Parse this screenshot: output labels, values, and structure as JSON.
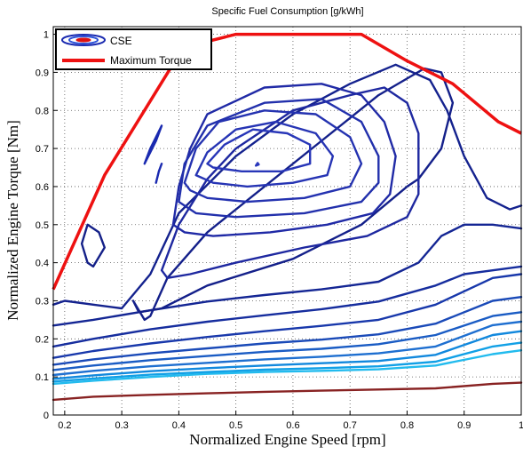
{
  "chart_data": {
    "type": "line",
    "title": "Specific Fuel Consumption [g/kWh]",
    "xlabel": "Normalized Engine Speed [rpm]",
    "ylabel": "Normalized Engine Torque [Nm]",
    "xlim": [
      0.18,
      1.0
    ],
    "ylim": [
      0,
      1.02
    ],
    "xticks": [
      "0.2",
      "0.3",
      "0.4",
      "0.5",
      "0.6",
      "0.7",
      "0.8",
      "0.9",
      "1"
    ],
    "xtick_values": [
      0.2,
      0.3,
      0.4,
      0.5,
      0.6,
      0.7,
      0.8,
      0.9,
      1.0
    ],
    "yticks": [
      "0",
      "0.1",
      "0.2",
      "0.3",
      "0.4",
      "0.5",
      "0.6",
      "0.7",
      "0.8",
      "0.9",
      "1"
    ],
    "ytick_values": [
      0,
      0.1,
      0.2,
      0.3,
      0.4,
      0.5,
      0.6,
      0.7,
      0.8,
      0.9,
      1.0
    ],
    "grid": true,
    "legend_position": "top-left",
    "legend": [
      {
        "label": "CSE",
        "style": "contour"
      },
      {
        "label": "Maximum Torque",
        "style": "line",
        "color": "#ee1111"
      }
    ],
    "max_torque": {
      "name": "Maximum Torque",
      "color": "#ee1111",
      "x": [
        0.18,
        0.27,
        0.385,
        0.42,
        0.5,
        0.72,
        0.8,
        0.88,
        0.96,
        1.0
      ],
      "y": [
        0.33,
        0.63,
        0.91,
        0.97,
        1.0,
        1.0,
        0.93,
        0.87,
        0.77,
        0.74
      ]
    },
    "contours": [
      {
        "color": "#882222",
        "x": [
          0.18,
          0.25,
          0.35,
          0.45,
          0.55,
          0.65,
          0.75,
          0.85,
          0.95,
          1.0
        ],
        "y": [
          0.04,
          0.048,
          0.053,
          0.057,
          0.061,
          0.064,
          0.067,
          0.07,
          0.082,
          0.085
        ]
      },
      {
        "color": "#22bbee",
        "x": [
          0.18,
          0.25,
          0.35,
          0.45,
          0.55,
          0.65,
          0.75,
          0.85,
          0.95,
          1.0
        ],
        "y": [
          0.082,
          0.09,
          0.1,
          0.108,
          0.113,
          0.116,
          0.12,
          0.13,
          0.16,
          0.17
        ]
      },
      {
        "color": "#11a0e6",
        "x": [
          0.18,
          0.25,
          0.35,
          0.45,
          0.55,
          0.65,
          0.75,
          0.85,
          0.95,
          1.0
        ],
        "y": [
          0.088,
          0.096,
          0.106,
          0.113,
          0.119,
          0.123,
          0.128,
          0.14,
          0.18,
          0.19
        ]
      },
      {
        "color": "#1188dd",
        "x": [
          0.18,
          0.25,
          0.35,
          0.45,
          0.55,
          0.65,
          0.75,
          0.85,
          0.95,
          1.0
        ],
        "y": [
          0.095,
          0.104,
          0.115,
          0.123,
          0.13,
          0.136,
          0.142,
          0.158,
          0.21,
          0.22
        ]
      },
      {
        "color": "#1e6fd0",
        "x": [
          0.18,
          0.25,
          0.35,
          0.45,
          0.55,
          0.65,
          0.75,
          0.85,
          0.95,
          1.0
        ],
        "y": [
          0.105,
          0.116,
          0.128,
          0.137,
          0.146,
          0.153,
          0.162,
          0.18,
          0.236,
          0.245
        ]
      },
      {
        "color": "#1a5cc4",
        "x": [
          0.18,
          0.25,
          0.35,
          0.45,
          0.55,
          0.65,
          0.75,
          0.85,
          0.95,
          1.0
        ],
        "y": [
          0.118,
          0.13,
          0.144,
          0.155,
          0.166,
          0.174,
          0.186,
          0.21,
          0.26,
          0.27
        ]
      },
      {
        "color": "#1a4ab8",
        "x": [
          0.18,
          0.25,
          0.35,
          0.45,
          0.55,
          0.65,
          0.75,
          0.85,
          0.95,
          1.0
        ],
        "y": [
          0.132,
          0.146,
          0.162,
          0.175,
          0.188,
          0.198,
          0.212,
          0.24,
          0.3,
          0.31
        ]
      },
      {
        "color": "#1838ab",
        "x": [
          0.18,
          0.25,
          0.35,
          0.45,
          0.55,
          0.65,
          0.75,
          0.85,
          0.95,
          1.0
        ],
        "y": [
          0.15,
          0.168,
          0.188,
          0.205,
          0.22,
          0.234,
          0.25,
          0.29,
          0.36,
          0.37
        ]
      },
      {
        "color": "#162d9e",
        "x": [
          0.18,
          0.25,
          0.35,
          0.45,
          0.55,
          0.65,
          0.75,
          0.85,
          0.9,
          0.95,
          1.0
        ],
        "y": [
          0.18,
          0.2,
          0.225,
          0.245,
          0.262,
          0.278,
          0.298,
          0.34,
          0.37,
          0.38,
          0.39
        ]
      },
      {
        "color": "#142694",
        "x": [
          0.18,
          0.25,
          0.35,
          0.45,
          0.55,
          0.65,
          0.75,
          0.82,
          0.86,
          0.9,
          0.95,
          1.0
        ],
        "y": [
          0.235,
          0.25,
          0.275,
          0.298,
          0.315,
          0.33,
          0.35,
          0.4,
          0.47,
          0.5,
          0.5,
          0.49
        ]
      },
      {
        "color": "#14228e",
        "x": [
          0.18,
          0.2,
          0.25,
          0.3,
          0.35,
          0.4,
          0.5,
          0.6,
          0.7,
          0.78,
          0.84,
          0.87,
          0.9,
          0.94,
          0.98,
          1.0
        ],
        "y": [
          0.29,
          0.3,
          0.29,
          0.28,
          0.37,
          0.53,
          0.68,
          0.79,
          0.87,
          0.92,
          0.88,
          0.8,
          0.68,
          0.57,
          0.54,
          0.55
        ]
      },
      {
        "color": "#142088",
        "x": [
          0.24,
          0.23,
          0.24,
          0.26,
          0.27,
          0.25,
          0.24
        ],
        "y": [
          0.4,
          0.45,
          0.5,
          0.48,
          0.44,
          0.39,
          0.4
        ]
      },
      {
        "color": "#14208a",
        "x": [
          0.32,
          0.34,
          0.35,
          0.38,
          0.45,
          0.55,
          0.65,
          0.75,
          0.83,
          0.86,
          0.88,
          0.86,
          0.82,
          0.8,
          0.72,
          0.6,
          0.45,
          0.37,
          0.33,
          0.32
        ],
        "y": [
          0.3,
          0.25,
          0.26,
          0.36,
          0.48,
          0.6,
          0.72,
          0.84,
          0.91,
          0.9,
          0.82,
          0.7,
          0.62,
          0.6,
          0.5,
          0.41,
          0.34,
          0.28,
          0.27,
          0.3
        ]
      },
      {
        "color": "#1e28a0",
        "x": [
          0.37,
          0.4,
          0.45,
          0.5,
          0.6,
          0.7,
          0.76,
          0.8,
          0.82,
          0.82,
          0.8,
          0.73,
          0.62,
          0.5,
          0.42,
          0.38,
          0.37
        ],
        "y": [
          0.38,
          0.5,
          0.62,
          0.7,
          0.8,
          0.84,
          0.86,
          0.82,
          0.74,
          0.58,
          0.52,
          0.47,
          0.44,
          0.4,
          0.37,
          0.36,
          0.38
        ]
      },
      {
        "color": "#202aa6",
        "x": [
          0.39,
          0.4,
          0.42,
          0.45,
          0.55,
          0.65,
          0.72,
          0.76,
          0.78,
          0.77,
          0.74,
          0.66,
          0.56,
          0.46,
          0.41,
          0.39
        ],
        "y": [
          0.5,
          0.6,
          0.7,
          0.79,
          0.86,
          0.87,
          0.84,
          0.77,
          0.68,
          0.58,
          0.53,
          0.5,
          0.48,
          0.47,
          0.48,
          0.5
        ]
      },
      {
        "color": "#2230ac",
        "x": [
          0.4,
          0.41,
          0.45,
          0.55,
          0.65,
          0.72,
          0.75,
          0.75,
          0.72,
          0.62,
          0.5,
          0.43,
          0.4
        ],
        "y": [
          0.56,
          0.66,
          0.76,
          0.82,
          0.83,
          0.77,
          0.68,
          0.61,
          0.56,
          0.53,
          0.52,
          0.53,
          0.56
        ]
      },
      {
        "color": "#2432b0",
        "x": [
          0.41,
          0.43,
          0.47,
          0.55,
          0.64,
          0.7,
          0.72,
          0.7,
          0.62,
          0.52,
          0.45,
          0.42,
          0.41
        ],
        "y": [
          0.61,
          0.7,
          0.77,
          0.8,
          0.79,
          0.73,
          0.66,
          0.6,
          0.57,
          0.56,
          0.57,
          0.59,
          0.61
        ]
      },
      {
        "color": "#2634b4",
        "x": [
          0.43,
          0.45,
          0.5,
          0.57,
          0.64,
          0.67,
          0.66,
          0.6,
          0.52,
          0.46,
          0.43
        ],
        "y": [
          0.63,
          0.69,
          0.75,
          0.77,
          0.74,
          0.68,
          0.63,
          0.61,
          0.6,
          0.61,
          0.63
        ]
      },
      {
        "color": "#2836b8",
        "x": [
          0.45,
          0.48,
          0.53,
          0.59,
          0.63,
          0.63,
          0.58,
          0.51,
          0.46,
          0.45
        ],
        "y": [
          0.66,
          0.71,
          0.75,
          0.74,
          0.71,
          0.66,
          0.64,
          0.64,
          0.65,
          0.66
        ]
      },
      {
        "color": "#2a38bc",
        "x": [
          0.535,
          0.54,
          0.538,
          0.535
        ],
        "y": [
          0.655,
          0.658,
          0.662,
          0.655
        ]
      },
      {
        "color": "#1a2ab0",
        "x": [
          0.34,
          0.35,
          0.37,
          0.36,
          0.34
        ],
        "y": [
          0.66,
          0.7,
          0.76,
          0.72,
          0.66
        ]
      },
      {
        "color": "#1a2ab0",
        "x": [
          0.36,
          0.365,
          0.37
        ],
        "y": [
          0.61,
          0.64,
          0.66
        ]
      }
    ]
  }
}
